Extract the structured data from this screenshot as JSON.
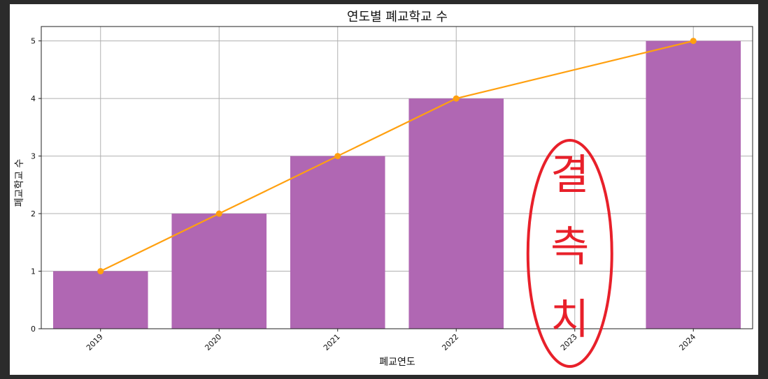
{
  "chart_data": {
    "type": "bar",
    "title": "연도별 폐교학교 수",
    "xlabel": "폐교연도",
    "ylabel": "폐교학교 수",
    "categories": [
      "2019",
      "2020",
      "2021",
      "2022",
      "2023",
      "2024"
    ],
    "series": [
      {
        "type": "bar",
        "values": [
          1,
          2,
          3,
          4,
          null,
          5
        ],
        "color": "#b067b3"
      },
      {
        "type": "line",
        "values": [
          1,
          2,
          3,
          4,
          null,
          5
        ],
        "color": "#ffa010",
        "markers": true
      }
    ],
    "ylim": [
      0,
      5.25
    ],
    "yticks": [
      "0",
      "1",
      "2",
      "3",
      "4",
      "5"
    ],
    "grid": true,
    "annotation": {
      "text": [
        "결",
        "측",
        "치"
      ],
      "target_category": "2023",
      "color": "#e8202a",
      "shape": "ellipse"
    }
  }
}
